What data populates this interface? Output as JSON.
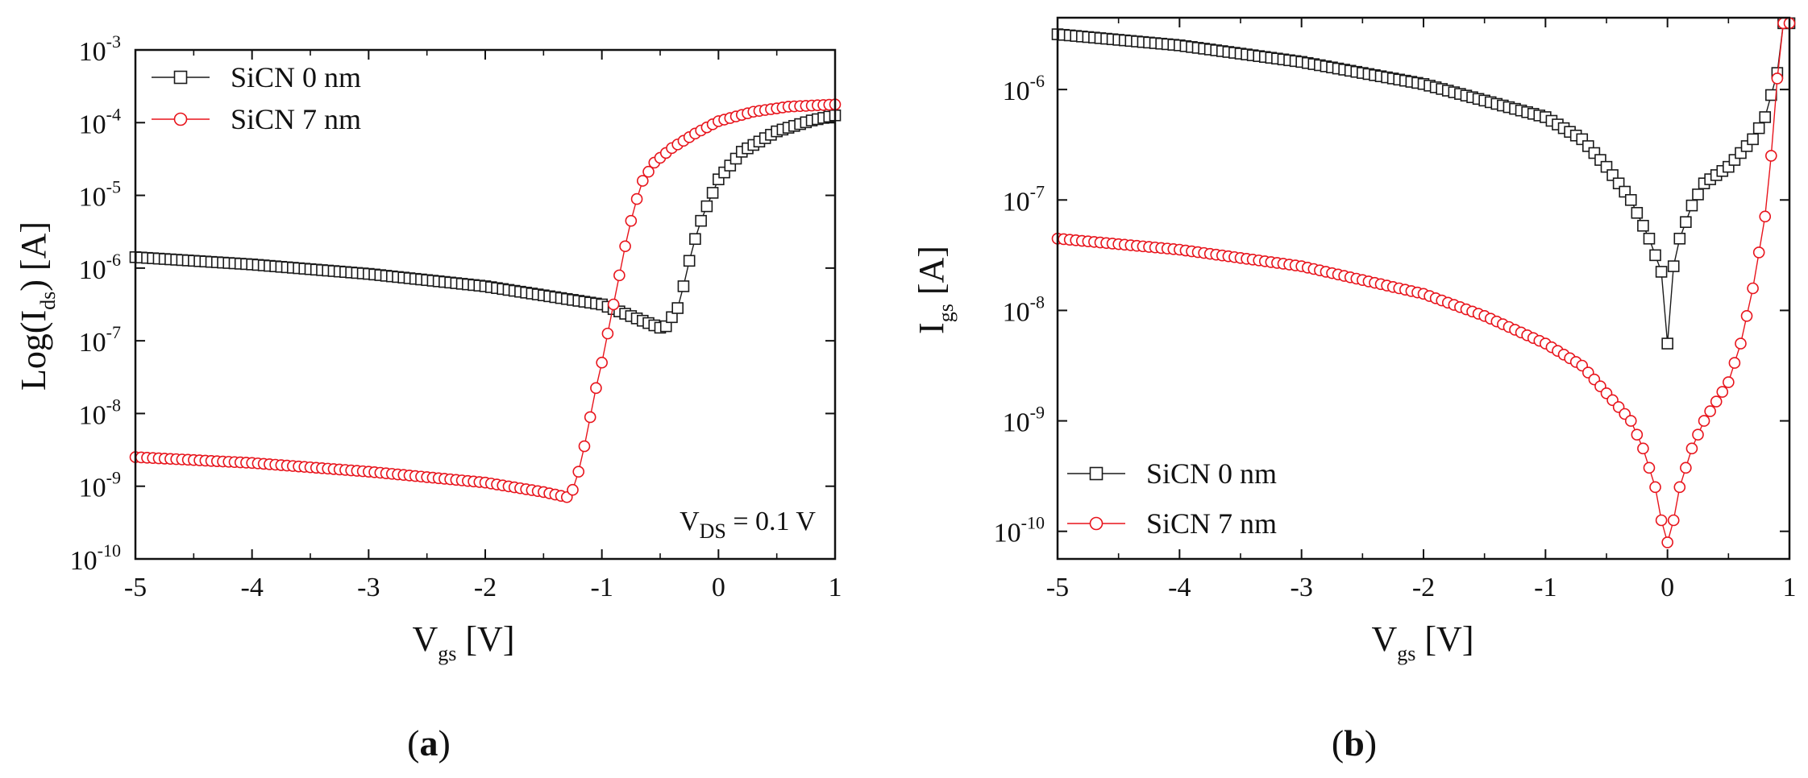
{
  "colors": {
    "series_black": "#1a1a1a",
    "series_red": "#e8141c",
    "axis": "#111111"
  },
  "chart_data": [
    {
      "type": "scatter",
      "panel_label": "(a)",
      "panel_letter": "a",
      "ylabel": {
        "prefix": "Log(I",
        "sub": "ds",
        "suffix": ") [A]"
      },
      "xlabel": {
        "prefix": "V",
        "sub": "gs",
        "suffix": " [V]"
      },
      "xlim": [
        -5,
        1
      ],
      "ylim_log10": [
        -10,
        -3
      ],
      "y_scale": "log",
      "x_ticks": [
        {
          "value": -5,
          "label": "-5"
        },
        {
          "value": -4,
          "label": "-4"
        },
        {
          "value": -3,
          "label": "-3"
        },
        {
          "value": -2,
          "label": "-2"
        },
        {
          "value": -1,
          "label": "-1"
        },
        {
          "value": 0,
          "label": "0"
        },
        {
          "value": 1,
          "label": "1"
        }
      ],
      "y_ticks": [
        {
          "exp": -10,
          "base": "10",
          "power": "-10"
        },
        {
          "exp": -9,
          "base": "10",
          "power": "-9"
        },
        {
          "exp": -8,
          "base": "10",
          "power": "-8"
        },
        {
          "exp": -7,
          "base": "10",
          "power": "-7"
        },
        {
          "exp": -6,
          "base": "10",
          "power": "-6"
        },
        {
          "exp": -5,
          "base": "10",
          "power": "-5"
        },
        {
          "exp": -4,
          "base": "10",
          "power": "-4"
        },
        {
          "exp": -3,
          "base": "10",
          "power": "-3"
        }
      ],
      "annotation": {
        "prefix": "V",
        "sub": "DS",
        "suffix": " = 0.1 V"
      },
      "legend_position": "top-left",
      "series": [
        {
          "name": "SiCN 0 nm",
          "marker": "square",
          "color": "#1a1a1a",
          "keypoints_log10": [
            [
              -5,
              -5.85
            ],
            [
              -4,
              -5.95
            ],
            [
              -3,
              -6.08
            ],
            [
              -2,
              -6.25
            ],
            [
              -1,
              -6.5
            ],
            [
              -0.5,
              -6.82
            ],
            [
              -0.45,
              -6.8
            ],
            [
              -0.35,
              -6.55
            ],
            [
              -0.3,
              -6.25
            ],
            [
              -0.25,
              -5.9
            ],
            [
              -0.2,
              -5.6
            ],
            [
              -0.15,
              -5.35
            ],
            [
              -0.1,
              -5.15
            ],
            [
              0,
              -4.78
            ],
            [
              0.2,
              -4.4
            ],
            [
              0.5,
              -4.12
            ],
            [
              0.8,
              -3.97
            ],
            [
              1,
              -3.9
            ]
          ]
        },
        {
          "name": "SiCN 7 nm",
          "marker": "circle",
          "color": "#e8141c",
          "keypoints_log10": [
            [
              -5,
              -8.6
            ],
            [
              -4,
              -8.68
            ],
            [
              -3,
              -8.8
            ],
            [
              -2,
              -8.95
            ],
            [
              -1.5,
              -9.08
            ],
            [
              -1.3,
              -9.15
            ],
            [
              -1.25,
              -9.05
            ],
            [
              -1.2,
              -8.8
            ],
            [
              -1.15,
              -8.45
            ],
            [
              -1.1,
              -8.05
            ],
            [
              -1.05,
              -7.65
            ],
            [
              -1.0,
              -7.3
            ],
            [
              -0.95,
              -6.9
            ],
            [
              -0.9,
              -6.5
            ],
            [
              -0.85,
              -6.1
            ],
            [
              -0.8,
              -5.7
            ],
            [
              -0.75,
              -5.35
            ],
            [
              -0.7,
              -5.05
            ],
            [
              -0.65,
              -4.8
            ],
            [
              -0.55,
              -4.55
            ],
            [
              -0.4,
              -4.35
            ],
            [
              -0.2,
              -4.15
            ],
            [
              0,
              -3.98
            ],
            [
              0.3,
              -3.85
            ],
            [
              0.6,
              -3.78
            ],
            [
              1,
              -3.75
            ]
          ]
        }
      ]
    },
    {
      "type": "scatter",
      "panel_label": "(b)",
      "panel_letter": "b",
      "ylabel": {
        "prefix": "I",
        "sub": "gs",
        "suffix": " [A]"
      },
      "xlabel": {
        "prefix": "V",
        "sub": "gs",
        "suffix": " [V]"
      },
      "xlim": [
        -5,
        1
      ],
      "ylim_log10": [
        -10.25,
        -5.35
      ],
      "y_scale": "log",
      "x_ticks": [
        {
          "value": -5,
          "label": "-5"
        },
        {
          "value": -4,
          "label": "-4"
        },
        {
          "value": -3,
          "label": "-3"
        },
        {
          "value": -2,
          "label": "-2"
        },
        {
          "value": -1,
          "label": "-1"
        },
        {
          "value": 0,
          "label": "0"
        },
        {
          "value": 1,
          "label": "1"
        }
      ],
      "y_ticks": [
        {
          "exp": -10,
          "base": "10",
          "power": "-10"
        },
        {
          "exp": -9,
          "base": "10",
          "power": "-9"
        },
        {
          "exp": -8,
          "base": "10",
          "power": "-8"
        },
        {
          "exp": -7,
          "base": "10",
          "power": "-7"
        },
        {
          "exp": -6,
          "base": "10",
          "power": "-6"
        }
      ],
      "legend_position": "bottom-left",
      "series": [
        {
          "name": "SiCN 0 nm",
          "marker": "square",
          "color": "#1a1a1a",
          "keypoints_log10": [
            [
              -5,
              -5.5
            ],
            [
              -4,
              -5.6
            ],
            [
              -3,
              -5.75
            ],
            [
              -2,
              -5.95
            ],
            [
              -1.5,
              -6.1
            ],
            [
              -1,
              -6.25
            ],
            [
              -0.7,
              -6.45
            ],
            [
              -0.5,
              -6.7
            ],
            [
              -0.3,
              -7.0
            ],
            [
              -0.15,
              -7.35
            ],
            [
              -0.05,
              -7.65
            ],
            [
              0,
              -8.3
            ],
            [
              0.05,
              -7.6
            ],
            [
              0.1,
              -7.35
            ],
            [
              0.2,
              -7.05
            ],
            [
              0.3,
              -6.85
            ],
            [
              0.5,
              -6.7
            ],
            [
              0.7,
              -6.45
            ],
            [
              0.8,
              -6.25
            ],
            [
              0.9,
              -5.85
            ],
            [
              0.95,
              -5.4
            ]
          ]
        },
        {
          "name": "SiCN 7 nm",
          "marker": "circle",
          "color": "#e8141c",
          "keypoints_log10": [
            [
              -5,
              -7.35
            ],
            [
              -4,
              -7.45
            ],
            [
              -3,
              -7.6
            ],
            [
              -2,
              -7.85
            ],
            [
              -1.5,
              -8.05
            ],
            [
              -1,
              -8.3
            ],
            [
              -0.7,
              -8.5
            ],
            [
              -0.5,
              -8.75
            ],
            [
              -0.3,
              -9.0
            ],
            [
              -0.2,
              -9.25
            ],
            [
              -0.1,
              -9.6
            ],
            [
              -0.05,
              -9.9
            ],
            [
              0,
              -10.1
            ],
            [
              0.05,
              -9.9
            ],
            [
              0.1,
              -9.6
            ],
            [
              0.2,
              -9.25
            ],
            [
              0.3,
              -9.0
            ],
            [
              0.5,
              -8.65
            ],
            [
              0.6,
              -8.3
            ],
            [
              0.7,
              -7.8
            ],
            [
              0.8,
              -7.15
            ],
            [
              0.85,
              -6.6
            ],
            [
              0.9,
              -5.9
            ],
            [
              0.95,
              -5.4
            ]
          ]
        }
      ]
    }
  ]
}
